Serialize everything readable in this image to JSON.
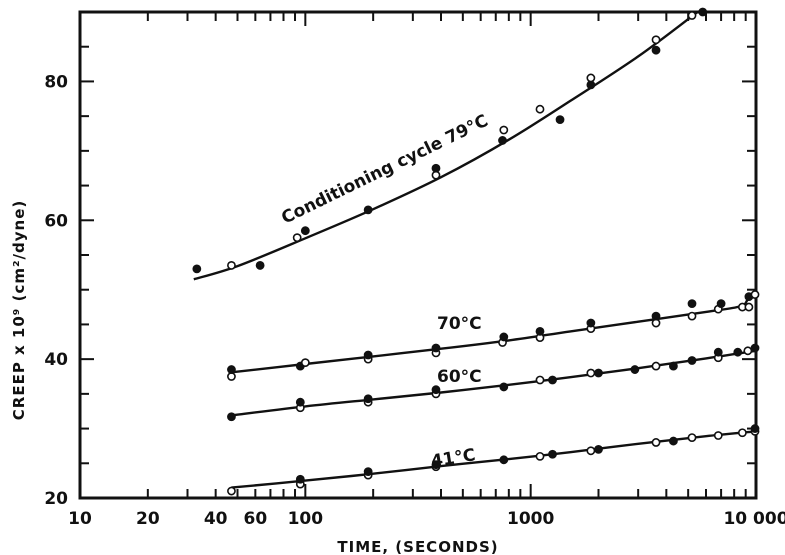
{
  "chart_data": {
    "type": "scatter",
    "title": "",
    "xlabel": "TIME, (SECONDS)",
    "ylabel": "CREEP x 10⁹ (cm²/dyne)",
    "x_scale": "log",
    "xlim": [
      10,
      10000
    ],
    "ylim": [
      20,
      90
    ],
    "x_ticks": [
      10,
      20,
      40,
      60,
      100,
      1000,
      10000
    ],
    "x_tick_labels": [
      "10",
      "20",
      "40",
      "60",
      "100",
      "1000",
      "10 000"
    ],
    "y_ticks": [
      20,
      40,
      60,
      80
    ],
    "y_tick_labels": [
      "20",
      "40",
      "60",
      "80"
    ],
    "grid": false,
    "legend": "none",
    "series": [
      {
        "name": "Conditioning cycle 79°C",
        "points": [
          {
            "x": 33,
            "y": 53,
            "marker": "filled"
          },
          {
            "x": 47,
            "y": 53.5,
            "marker": "open"
          },
          {
            "x": 63,
            "y": 53.5,
            "marker": "filled"
          },
          {
            "x": 92,
            "y": 57.5,
            "marker": "open"
          },
          {
            "x": 100,
            "y": 58.5,
            "marker": "filled"
          },
          {
            "x": 190,
            "y": 61.5,
            "marker": "filled"
          },
          {
            "x": 380,
            "y": 66.5,
            "marker": "open"
          },
          {
            "x": 380,
            "y": 67.5,
            "marker": "filled"
          },
          {
            "x": 750,
            "y": 71.5,
            "marker": "filled"
          },
          {
            "x": 760,
            "y": 73,
            "marker": "open"
          },
          {
            "x": 1100,
            "y": 76,
            "marker": "open"
          },
          {
            "x": 1350,
            "y": 74.5,
            "marker": "filled"
          },
          {
            "x": 1850,
            "y": 79.5,
            "marker": "filled"
          },
          {
            "x": 1850,
            "y": 80.5,
            "marker": "open"
          },
          {
            "x": 3600,
            "y": 84.5,
            "marker": "filled"
          },
          {
            "x": 3600,
            "y": 86,
            "marker": "open"
          },
          {
            "x": 5200,
            "y": 89.5,
            "marker": "open"
          },
          {
            "x": 5800,
            "y": 90,
            "marker": "filled"
          }
        ],
        "curve": [
          [
            32,
            51.5
          ],
          [
            50,
            53.4
          ],
          [
            100,
            57.4
          ],
          [
            200,
            61.6
          ],
          [
            400,
            66.2
          ],
          [
            800,
            71.6
          ],
          [
            1500,
            77.2
          ],
          [
            3000,
            83.6
          ],
          [
            5500,
            90
          ]
        ]
      },
      {
        "name": "70°C",
        "points": [
          {
            "x": 47,
            "y": 37.5,
            "marker": "open"
          },
          {
            "x": 47,
            "y": 38.5,
            "marker": "filled"
          },
          {
            "x": 95,
            "y": 39,
            "marker": "filled"
          },
          {
            "x": 100,
            "y": 39.5,
            "marker": "open"
          },
          {
            "x": 190,
            "y": 40,
            "marker": "open"
          },
          {
            "x": 190,
            "y": 40.6,
            "marker": "filled"
          },
          {
            "x": 380,
            "y": 40.9,
            "marker": "open"
          },
          {
            "x": 380,
            "y": 41.6,
            "marker": "filled"
          },
          {
            "x": 750,
            "y": 42.4,
            "marker": "open"
          },
          {
            "x": 760,
            "y": 43.2,
            "marker": "filled"
          },
          {
            "x": 1100,
            "y": 43.1,
            "marker": "open"
          },
          {
            "x": 1100,
            "y": 44,
            "marker": "filled"
          },
          {
            "x": 1850,
            "y": 44.4,
            "marker": "open"
          },
          {
            "x": 1850,
            "y": 45.2,
            "marker": "filled"
          },
          {
            "x": 3600,
            "y": 45.2,
            "marker": "open"
          },
          {
            "x": 3600,
            "y": 46.2,
            "marker": "filled"
          },
          {
            "x": 5200,
            "y": 46.2,
            "marker": "open"
          },
          {
            "x": 5200,
            "y": 48,
            "marker": "filled"
          },
          {
            "x": 6800,
            "y": 47.2,
            "marker": "open"
          },
          {
            "x": 7000,
            "y": 48,
            "marker": "filled"
          },
          {
            "x": 8700,
            "y": 47.5,
            "marker": "open"
          },
          {
            "x": 9300,
            "y": 47.5,
            "marker": "open"
          },
          {
            "x": 9300,
            "y": 49,
            "marker": "filled"
          },
          {
            "x": 9900,
            "y": 49.3,
            "marker": "open"
          }
        ],
        "curve": [
          [
            47,
            38.1
          ],
          [
            100,
            39.3
          ],
          [
            200,
            40.4
          ],
          [
            400,
            41.5
          ],
          [
            800,
            42.7
          ],
          [
            1500,
            44
          ],
          [
            3000,
            45.4
          ],
          [
            6000,
            46.8
          ],
          [
            8500,
            47.6
          ],
          [
            9200,
            48.6
          ],
          [
            9700,
            49.3
          ],
          [
            10000,
            49.6
          ]
        ]
      },
      {
        "name": "60°C",
        "points": [
          {
            "x": 47,
            "y": 31.7,
            "marker": "filled"
          },
          {
            "x": 95,
            "y": 33,
            "marker": "open"
          },
          {
            "x": 95,
            "y": 33.8,
            "marker": "filled"
          },
          {
            "x": 190,
            "y": 33.8,
            "marker": "open"
          },
          {
            "x": 190,
            "y": 34.3,
            "marker": "filled"
          },
          {
            "x": 380,
            "y": 35,
            "marker": "open"
          },
          {
            "x": 380,
            "y": 35.6,
            "marker": "filled"
          },
          {
            "x": 760,
            "y": 36,
            "marker": "filled"
          },
          {
            "x": 1100,
            "y": 37,
            "marker": "open"
          },
          {
            "x": 1250,
            "y": 37,
            "marker": "filled"
          },
          {
            "x": 1850,
            "y": 38,
            "marker": "open"
          },
          {
            "x": 2000,
            "y": 38,
            "marker": "filled"
          },
          {
            "x": 2900,
            "y": 38.5,
            "marker": "filled"
          },
          {
            "x": 3600,
            "y": 39,
            "marker": "open"
          },
          {
            "x": 4300,
            "y": 39,
            "marker": "filled"
          },
          {
            "x": 5200,
            "y": 39.8,
            "marker": "filled"
          },
          {
            "x": 6800,
            "y": 40.2,
            "marker": "open"
          },
          {
            "x": 6800,
            "y": 41,
            "marker": "filled"
          },
          {
            "x": 8300,
            "y": 41,
            "marker": "filled"
          },
          {
            "x": 9200,
            "y": 41.2,
            "marker": "open"
          },
          {
            "x": 9900,
            "y": 41.6,
            "marker": "filled"
          }
        ],
        "curve": [
          [
            47,
            31.9
          ],
          [
            100,
            33.2
          ],
          [
            200,
            34.2
          ],
          [
            400,
            35.2
          ],
          [
            800,
            36.3
          ],
          [
            1500,
            37.4
          ],
          [
            3000,
            38.7
          ],
          [
            6000,
            40.1
          ],
          [
            10000,
            41.2
          ]
        ]
      },
      {
        "name": "41°C",
        "points": [
          {
            "x": 47,
            "y": 21,
            "marker": "open"
          },
          {
            "x": 95,
            "y": 22,
            "marker": "open"
          },
          {
            "x": 95,
            "y": 22.7,
            "marker": "filled"
          },
          {
            "x": 190,
            "y": 23.3,
            "marker": "open"
          },
          {
            "x": 190,
            "y": 23.8,
            "marker": "filled"
          },
          {
            "x": 380,
            "y": 24.5,
            "marker": "open"
          },
          {
            "x": 380,
            "y": 24.8,
            "marker": "filled"
          },
          {
            "x": 760,
            "y": 25.5,
            "marker": "filled"
          },
          {
            "x": 1100,
            "y": 26,
            "marker": "open"
          },
          {
            "x": 1250,
            "y": 26.3,
            "marker": "filled"
          },
          {
            "x": 1850,
            "y": 26.8,
            "marker": "open"
          },
          {
            "x": 2000,
            "y": 27,
            "marker": "filled"
          },
          {
            "x": 3600,
            "y": 28,
            "marker": "open"
          },
          {
            "x": 4300,
            "y": 28.2,
            "marker": "filled"
          },
          {
            "x": 5200,
            "y": 28.7,
            "marker": "open"
          },
          {
            "x": 6800,
            "y": 29,
            "marker": "open"
          },
          {
            "x": 8700,
            "y": 29.4,
            "marker": "open"
          },
          {
            "x": 9900,
            "y": 29.6,
            "marker": "open"
          },
          {
            "x": 9900,
            "y": 30,
            "marker": "filled"
          }
        ],
        "curve": [
          [
            47,
            21.5
          ],
          [
            100,
            22.5
          ],
          [
            200,
            23.5
          ],
          [
            400,
            24.6
          ],
          [
            800,
            25.6
          ],
          [
            1500,
            26.6
          ],
          [
            3000,
            27.8
          ],
          [
            6000,
            28.9
          ],
          [
            10000,
            29.6
          ]
        ]
      }
    ]
  },
  "annotations": {
    "series_label_79": "Conditioning cycle 79°C",
    "series_label_70": "70°C",
    "series_label_60": "60°C",
    "series_label_41": "41°C"
  }
}
